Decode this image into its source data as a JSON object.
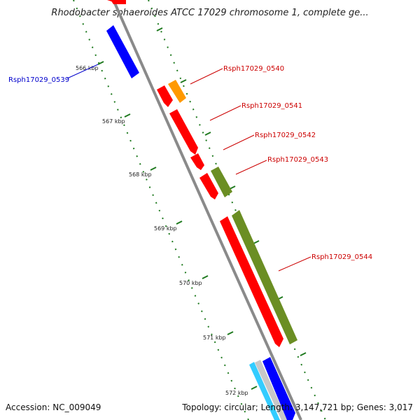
{
  "title": "Rhodobacter sphaeroides ATCC 17029 chromosome 1, complete ge...",
  "footer": {
    "accession": "Accession: NC_009049",
    "summary": "Topology: circular; Length: 3,147,721 bp; Genes: 3,017"
  },
  "colors": {
    "backbone": "#8a8a8a",
    "dotted_track": "#1f7a1f",
    "gene_red": "#ff0000",
    "gene_blue": "#0000ff",
    "gene_orange": "#ff9900",
    "gene_olive": "#6b8e23",
    "gene_cyan": "#33ccff",
    "gene_grey": "#c8c8c8",
    "label_red": "#cc0000",
    "label_blue": "#0000cc"
  },
  "ticks": [
    {
      "label": "566 kbp"
    },
    {
      "label": "567 kbp"
    },
    {
      "label": "568 kbp"
    },
    {
      "label": "569 kbp"
    },
    {
      "label": "570 kbp"
    },
    {
      "label": "571 kbp"
    },
    {
      "label": "572 kbp"
    }
  ],
  "gene_labels": [
    {
      "text": "Rsph17029_0539",
      "color": "#0000cc"
    },
    {
      "text": "Rsph17029_0540",
      "color": "#cc0000"
    },
    {
      "text": "Rsph17029_0541",
      "color": "#cc0000"
    },
    {
      "text": "Rsph17029_0542",
      "color": "#cc0000"
    },
    {
      "text": "Rsph17029_0543",
      "color": "#cc0000"
    },
    {
      "text": "Rsph17029_0544",
      "color": "#cc0000"
    }
  ]
}
